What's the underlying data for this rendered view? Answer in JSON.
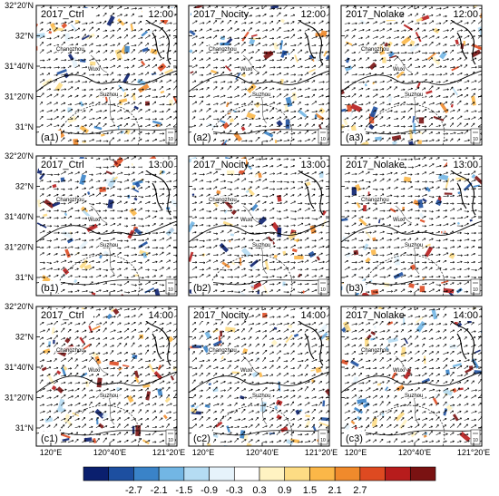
{
  "y_axis_labels": [
    "32°20'N",
    "32°N",
    "31°40'N",
    "31°20'N",
    "31°N"
  ],
  "x_axis_labels": [
    "120°E",
    "120°40'E",
    "121°20'E"
  ],
  "columns": [
    "2017_Ctrl",
    "2017_Nocity",
    "2017_Nolake"
  ],
  "rows": [
    {
      "time": "12:00",
      "tags": [
        "(a1)",
        "(a2)",
        "(a3)"
      ]
    },
    {
      "time": "13:00",
      "tags": [
        "(b1)",
        "(b2)",
        "(b3)"
      ]
    },
    {
      "time": "14:00",
      "tags": [
        "(c1)",
        "(c2)",
        "(c3)"
      ]
    }
  ],
  "city_labels": {
    "changzhou": "Changzhou",
    "wuxi": "Wuxi",
    "suzhou": "Suzhou"
  },
  "reference_vector_label": "10",
  "colorbar": {
    "labels": [
      "-2.7",
      "-2.1",
      "-1.5",
      "-0.9",
      "-0.3",
      "0.3",
      "0.9",
      "1.5",
      "2.1",
      "2.7"
    ],
    "colors": [
      "#0a1f6e",
      "#1d4fa0",
      "#3a83c8",
      "#72b6e4",
      "#b5dcf3",
      "#e6f3fb",
      "#ffffff",
      "#fff3c2",
      "#fddc84",
      "#fbb748",
      "#f08a2c",
      "#de4a21",
      "#b71c1c",
      "#7a1212"
    ]
  }
}
